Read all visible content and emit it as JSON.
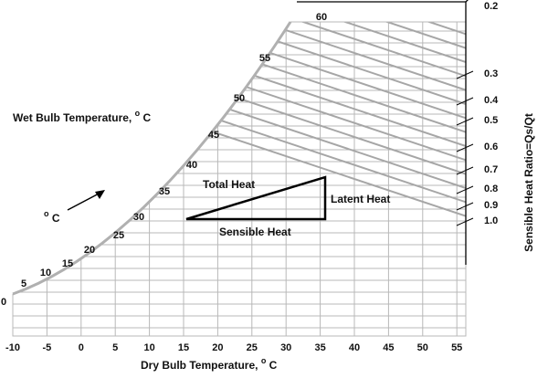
{
  "diagram": {
    "wet_bulb_label": "Wet Bulb Temperature,",
    "wet_bulb_unit": "C",
    "dry_bulb_label": "Dry Bulb Temperature,",
    "dry_bulb_unit": "C",
    "shr_label": "Sensible Heat Ratio=Qs/Qt",
    "degree_symbol": "o",
    "degree_c_label": "C",
    "total_heat": "Total Heat",
    "latent_heat": "Latent Heat",
    "sensible_heat": "Sensible Heat",
    "dry_bulb_ticks": [
      "-10",
      "-5",
      "0",
      "5",
      "10",
      "15",
      "20",
      "25",
      "30",
      "35",
      "40",
      "45",
      "50",
      "55"
    ],
    "wet_bulb_ticks": [
      "0",
      "5",
      "10",
      "15",
      "20",
      "25",
      "30",
      "35",
      "40",
      "45",
      "50",
      "55",
      "60"
    ],
    "shr_ticks": [
      "0.2",
      "0.3",
      "0.4",
      "0.5",
      "0.6",
      "0.7",
      "0.8",
      "0.9",
      "1.0"
    ]
  }
}
